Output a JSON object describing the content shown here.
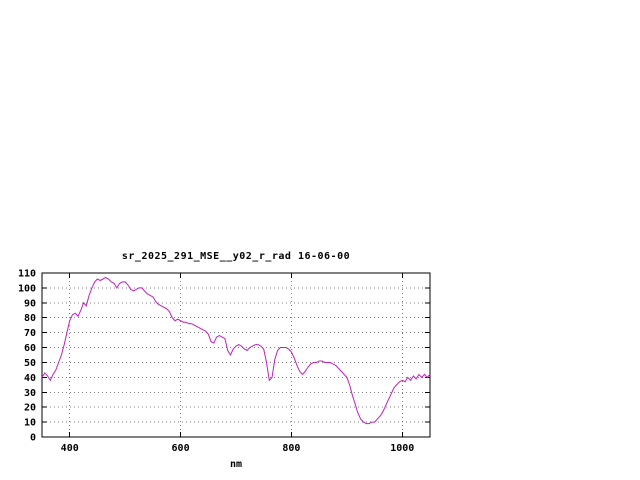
{
  "page": {
    "background": "#ffffff"
  },
  "chart_data": {
    "type": "line",
    "title": "sr_2025_291_MSE__y02_r_rad 16-06-00",
    "xlabel": "nm",
    "ylabel": "",
    "xlim": [
      350,
      1050
    ],
    "ylim": [
      0,
      110
    ],
    "xticks": [
      400,
      600,
      800,
      1000
    ],
    "yticks": [
      0,
      10,
      20,
      30,
      40,
      50,
      60,
      70,
      80,
      90,
      100,
      110
    ],
    "grid": true,
    "grid_style": "dotted",
    "grid_color": "#808080",
    "axis_color": "#000000",
    "line_color": "#c020c0",
    "legend": "none",
    "series": [
      {
        "x": [
          350,
          355,
          360,
          365,
          370,
          375,
          380,
          385,
          390,
          395,
          400,
          405,
          410,
          415,
          420,
          425,
          430,
          435,
          440,
          445,
          450,
          455,
          460,
          465,
          470,
          475,
          480,
          485,
          490,
          495,
          500,
          505,
          510,
          515,
          520,
          525,
          530,
          535,
          540,
          545,
          550,
          555,
          560,
          565,
          570,
          575,
          580,
          585,
          590,
          595,
          600,
          605,
          610,
          615,
          620,
          625,
          630,
          635,
          640,
          645,
          650,
          655,
          660,
          665,
          670,
          675,
          680,
          685,
          690,
          695,
          700,
          705,
          710,
          715,
          720,
          725,
          730,
          735,
          740,
          745,
          750,
          755,
          760,
          765,
          770,
          775,
          780,
          785,
          790,
          795,
          800,
          805,
          810,
          815,
          820,
          825,
          830,
          835,
          840,
          845,
          850,
          855,
          860,
          865,
          870,
          875,
          880,
          885,
          890,
          895,
          900,
          905,
          910,
          915,
          920,
          925,
          930,
          935,
          940,
          945,
          950,
          955,
          960,
          965,
          970,
          975,
          980,
          985,
          990,
          995,
          1000,
          1005,
          1010,
          1015,
          1020,
          1025,
          1030,
          1035,
          1040,
          1045,
          1050
        ],
        "y": [
          40,
          43,
          41,
          38,
          42,
          45,
          50,
          55,
          62,
          70,
          78,
          82,
          83,
          81,
          85,
          90,
          88,
          95,
          100,
          104,
          106,
          105,
          106,
          107,
          106,
          104,
          103,
          100,
          103,
          104,
          104,
          102,
          99,
          98,
          99,
          100,
          100,
          98,
          96,
          95,
          94,
          91,
          89,
          88,
          87,
          86,
          84,
          80,
          78,
          79,
          78,
          77,
          77,
          76,
          76,
          75,
          74,
          73,
          72,
          71,
          69,
          64,
          63,
          67,
          68,
          67,
          66,
          58,
          55,
          59,
          61,
          62,
          61,
          59,
          58,
          60,
          61,
          62,
          62,
          61,
          59,
          50,
          38,
          40,
          52,
          58,
          60,
          60,
          60,
          59,
          57,
          53,
          48,
          44,
          42,
          44,
          47,
          49,
          50,
          50,
          51,
          51,
          50,
          50,
          50,
          49,
          48,
          46,
          44,
          42,
          40,
          35,
          28,
          22,
          16,
          12,
          10,
          9,
          9,
          10,
          10,
          12,
          14,
          17,
          21,
          25,
          29,
          33,
          35,
          37,
          38,
          37,
          40,
          38,
          41,
          39,
          42,
          40,
          42,
          40,
          42
        ]
      }
    ]
  }
}
